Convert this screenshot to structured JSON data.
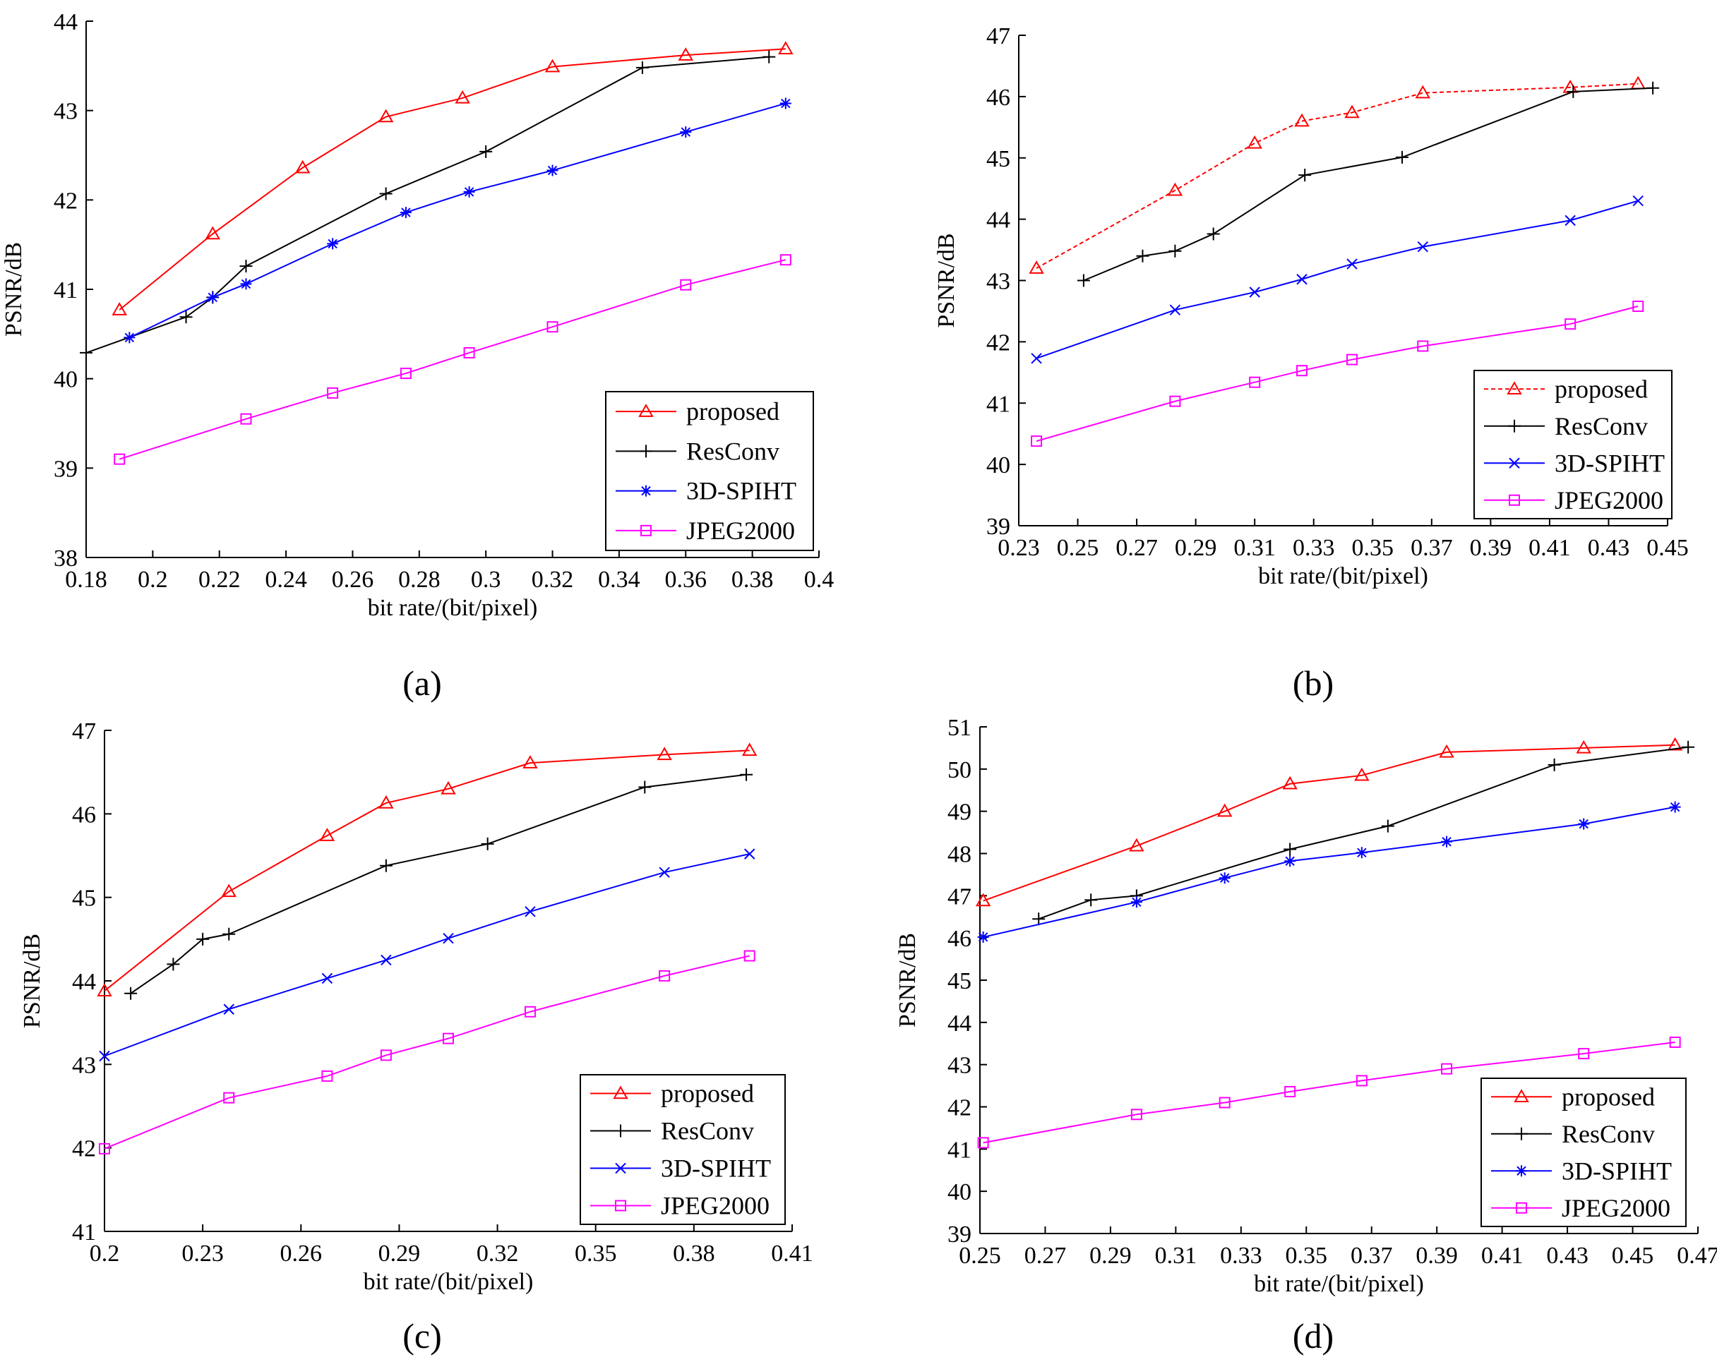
{
  "figure": {
    "captions": [
      "(a)",
      "(b)",
      "(c)",
      "(d)"
    ]
  },
  "chart_data": [
    {
      "type": "line",
      "caption": "(a)",
      "xlabel": "bit rate/(bit/pixel)",
      "ylabel": "PSNR/dB",
      "xlim": [
        0.18,
        0.4
      ],
      "ylim": [
        38,
        44
      ],
      "xticks": [
        "0.18",
        "0.2",
        "0.22",
        "0.24",
        "0.26",
        "0.28",
        "0.3",
        "0.32",
        "0.34",
        "0.36",
        "0.38",
        "0.4"
      ],
      "yticks": [
        "38",
        "39",
        "40",
        "41",
        "42",
        "43",
        "44"
      ],
      "grid": false,
      "legend_position": "bottom-right",
      "series": [
        {
          "name": "proposed",
          "color": "#ff0000",
          "marker": "triangle",
          "dash": "",
          "x": [
            0.19,
            0.218,
            0.245,
            0.27,
            0.293,
            0.32,
            0.36,
            0.39
          ],
          "y": [
            40.77,
            41.62,
            42.36,
            42.93,
            43.14,
            43.49,
            43.62,
            43.69
          ]
        },
        {
          "name": "ResConv",
          "color": "#000000",
          "marker": "plus",
          "dash": "",
          "x": [
            0.18,
            0.21,
            0.218,
            0.228,
            0.27,
            0.3,
            0.347,
            0.385
          ],
          "y": [
            40.29,
            40.69,
            40.91,
            41.26,
            42.07,
            42.54,
            43.48,
            43.6
          ]
        },
        {
          "name": "3D-SPIHT",
          "color": "#0000ff",
          "marker": "star",
          "dash": "",
          "x": [
            0.193,
            0.218,
            0.228,
            0.254,
            0.276,
            0.295,
            0.32,
            0.36,
            0.39
          ],
          "y": [
            40.46,
            40.91,
            41.06,
            41.51,
            41.86,
            42.09,
            42.33,
            42.76,
            43.08
          ]
        },
        {
          "name": "JPEG2000",
          "color": "#ff00ff",
          "marker": "square",
          "dash": "",
          "x": [
            0.19,
            0.228,
            0.254,
            0.276,
            0.295,
            0.32,
            0.36,
            0.39
          ],
          "y": [
            39.1,
            39.55,
            39.84,
            40.06,
            40.29,
            40.58,
            41.05,
            41.33
          ]
        }
      ],
      "legend": [
        "proposed",
        "ResConv",
        "3D-SPIHT",
        "JPEG2000"
      ]
    },
    {
      "type": "line",
      "caption": "(b)",
      "xlabel": "bit rate/(bit/pixel)",
      "ylabel": "PSNR/dB",
      "xlim": [
        0.23,
        0.45
      ],
      "ylim": [
        39,
        47
      ],
      "xticks": [
        "0.23",
        "0.25",
        "0.27",
        "0.29",
        "0.31",
        "0.33",
        "0.35",
        "0.37",
        "0.39",
        "0.41",
        "0.43",
        "0.45"
      ],
      "yticks": [
        "39",
        "40",
        "41",
        "42",
        "43",
        "44",
        "45",
        "46",
        "47"
      ],
      "grid": false,
      "legend_position": "bottom-right",
      "series": [
        {
          "name": "proposed",
          "color": "#ff0000",
          "marker": "triangle",
          "dash": "6,4",
          "x": [
            0.236,
            0.283,
            0.31,
            0.326,
            0.343,
            0.367,
            0.417,
            0.44
          ],
          "y": [
            43.2,
            44.47,
            45.24,
            45.6,
            45.74,
            46.06,
            46.15,
            46.21
          ]
        },
        {
          "name": "ResConv",
          "color": "#000000",
          "marker": "plus",
          "dash": "",
          "x": [
            0.252,
            0.272,
            0.283,
            0.296,
            0.327,
            0.36,
            0.418,
            0.445
          ],
          "y": [
            43.0,
            43.4,
            43.48,
            43.76,
            44.72,
            45.01,
            46.08,
            46.14
          ]
        },
        {
          "name": "3D-SPIHT",
          "color": "#0000ff",
          "marker": "cross",
          "dash": "",
          "x": [
            0.236,
            0.283,
            0.31,
            0.326,
            0.343,
            0.367,
            0.417,
            0.44
          ],
          "y": [
            41.73,
            42.52,
            42.81,
            43.02,
            43.27,
            43.55,
            43.98,
            44.3
          ]
        },
        {
          "name": "JPEG2000",
          "color": "#ff00ff",
          "marker": "square",
          "dash": "",
          "x": [
            0.236,
            0.283,
            0.31,
            0.326,
            0.343,
            0.367,
            0.417,
            0.44
          ],
          "y": [
            40.38,
            41.03,
            41.34,
            41.53,
            41.71,
            41.93,
            42.29,
            42.58
          ]
        }
      ],
      "legend": [
        "proposed",
        "ResConv",
        "3D-SPIHT",
        "JPEG2000"
      ]
    },
    {
      "type": "line",
      "caption": "(c)",
      "xlabel": "bit rate/(bit/pixel)",
      "ylabel": "PSNR/dB",
      "xlim": [
        0.2,
        0.41
      ],
      "ylim": [
        41,
        47
      ],
      "xticks": [
        "0.2",
        "0.23",
        "0.26",
        "0.29",
        "0.32",
        "0.35",
        "0.38",
        "0.41"
      ],
      "yticks": [
        "41",
        "42",
        "43",
        "44",
        "45",
        "46",
        "47"
      ],
      "grid": false,
      "legend_position": "bottom-right",
      "series": [
        {
          "name": "proposed",
          "color": "#ff0000",
          "marker": "triangle",
          "dash": "",
          "x": [
            0.2,
            0.238,
            0.268,
            0.286,
            0.305,
            0.33,
            0.371,
            0.397
          ],
          "y": [
            43.88,
            45.07,
            45.74,
            46.13,
            46.3,
            46.61,
            46.71,
            46.76
          ]
        },
        {
          "name": "ResConv",
          "color": "#000000",
          "marker": "plus",
          "dash": "",
          "x": [
            0.208,
            0.221,
            0.23,
            0.238,
            0.286,
            0.317,
            0.365,
            0.396
          ],
          "y": [
            43.85,
            44.2,
            44.5,
            44.56,
            45.38,
            45.64,
            46.32,
            46.47
          ]
        },
        {
          "name": "3D-SPIHT",
          "color": "#0000ff",
          "marker": "cross",
          "dash": "",
          "x": [
            0.2,
            0.238,
            0.268,
            0.286,
            0.305,
            0.33,
            0.371,
            0.397
          ],
          "y": [
            43.1,
            43.66,
            44.03,
            44.25,
            44.51,
            44.83,
            45.3,
            45.52
          ]
        },
        {
          "name": "JPEG2000",
          "color": "#ff00ff",
          "marker": "square",
          "dash": "",
          "x": [
            0.2,
            0.238,
            0.268,
            0.286,
            0.305,
            0.33,
            0.371,
            0.397
          ],
          "y": [
            41.99,
            42.6,
            42.86,
            43.11,
            43.31,
            43.63,
            44.06,
            44.3
          ]
        }
      ],
      "legend": [
        "proposed",
        "ResConv",
        "3D-SPIHT",
        "JPEG2000"
      ]
    },
    {
      "type": "line",
      "caption": "(d)",
      "xlabel": "bit rate/(bit/pixel)",
      "ylabel": "PSNR/dB",
      "xlim": [
        0.25,
        0.47
      ],
      "ylim": [
        39,
        51
      ],
      "xticks": [
        "0.25",
        "0.27",
        "0.29",
        "0.31",
        "0.33",
        "0.35",
        "0.37",
        "0.39",
        "0.41",
        "0.43",
        "0.45",
        "0.47"
      ],
      "yticks": [
        "39",
        "40",
        "41",
        "42",
        "43",
        "44",
        "45",
        "46",
        "47",
        "48",
        "49",
        "50",
        "51"
      ],
      "grid": false,
      "legend_position": "bottom-right",
      "series": [
        {
          "name": "proposed",
          "color": "#ff0000",
          "marker": "triangle",
          "dash": "",
          "x": [
            0.251,
            0.298,
            0.325,
            0.345,
            0.367,
            0.393,
            0.435,
            0.463
          ],
          "y": [
            46.88,
            48.18,
            49.0,
            49.65,
            49.85,
            50.4,
            50.5,
            50.57
          ]
        },
        {
          "name": "ResConv",
          "color": "#000000",
          "marker": "plus",
          "dash": "",
          "x": [
            0.268,
            0.284,
            0.298,
            0.345,
            0.375,
            0.426,
            0.467
          ],
          "y": [
            46.45,
            46.9,
            47.0,
            48.1,
            48.65,
            50.1,
            50.52
          ]
        },
        {
          "name": "3D-SPIHT",
          "color": "#0000ff",
          "marker": "star",
          "dash": "",
          "x": [
            0.251,
            0.298,
            0.325,
            0.345,
            0.367,
            0.393,
            0.435,
            0.463
          ],
          "y": [
            46.02,
            46.85,
            47.42,
            47.82,
            48.02,
            48.28,
            48.7,
            49.1
          ]
        },
        {
          "name": "JPEG2000",
          "color": "#ff00ff",
          "marker": "square",
          "dash": "",
          "x": [
            0.251,
            0.298,
            0.325,
            0.345,
            0.367,
            0.393,
            0.435,
            0.463
          ],
          "y": [
            41.15,
            41.82,
            42.1,
            42.36,
            42.62,
            42.9,
            43.26,
            43.53
          ]
        }
      ],
      "legend": [
        "proposed",
        "ResConv",
        "3D-SPIHT",
        "JPEG2000"
      ]
    }
  ]
}
